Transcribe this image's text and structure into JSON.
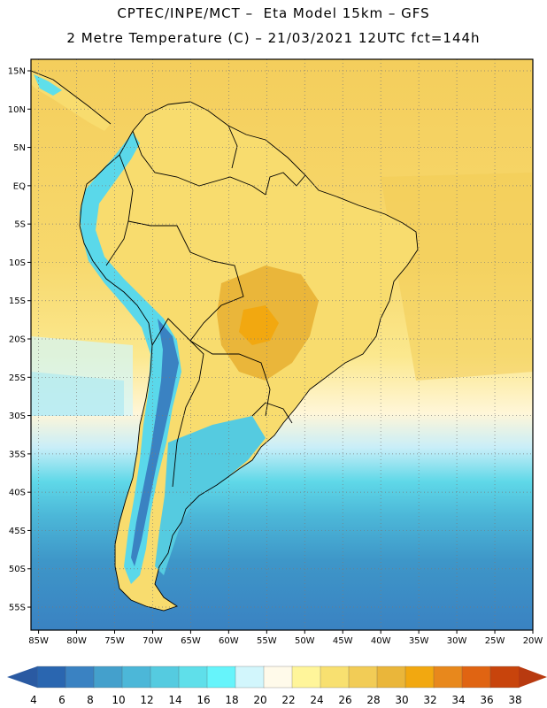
{
  "header": {
    "line1": "CPTEC/INPE/MCT –  Eta Model 15km – GFS",
    "line2": "2 Metre Temperature (C) – 21/03/2021 12UTC fct=144h"
  },
  "map": {
    "lon_range": [
      -86,
      -20
    ],
    "lat_range": [
      -58,
      16.5
    ],
    "lat_ticks": [
      {
        "value": 15,
        "label": "15N"
      },
      {
        "value": 10,
        "label": "10N"
      },
      {
        "value": 5,
        "label": "5N"
      },
      {
        "value": 0,
        "label": "EQ"
      },
      {
        "value": -5,
        "label": "5S"
      },
      {
        "value": -10,
        "label": "10S"
      },
      {
        "value": -15,
        "label": "15S"
      },
      {
        "value": -20,
        "label": "20S"
      },
      {
        "value": -25,
        "label": "25S"
      },
      {
        "value": -30,
        "label": "30S"
      },
      {
        "value": -35,
        "label": "35S"
      },
      {
        "value": -40,
        "label": "40S"
      },
      {
        "value": -45,
        "label": "45S"
      },
      {
        "value": -50,
        "label": "50S"
      },
      {
        "value": -55,
        "label": "55S"
      }
    ],
    "lon_ticks": [
      {
        "value": -85,
        "label": "85W"
      },
      {
        "value": -80,
        "label": "80W"
      },
      {
        "value": -75,
        "label": "75W"
      },
      {
        "value": -70,
        "label": "70W"
      },
      {
        "value": -65,
        "label": "65W"
      },
      {
        "value": -60,
        "label": "60W"
      },
      {
        "value": -55,
        "label": "55W"
      },
      {
        "value": -50,
        "label": "50W"
      },
      {
        "value": -45,
        "label": "45W"
      },
      {
        "value": -40,
        "label": "40W"
      },
      {
        "value": -35,
        "label": "35W"
      },
      {
        "value": -30,
        "label": "30W"
      },
      {
        "value": -25,
        "label": "25W"
      },
      {
        "value": -20,
        "label": "20W"
      }
    ]
  },
  "colorbar": {
    "labels": [
      "4",
      "6",
      "8",
      "10",
      "12",
      "14",
      "16",
      "18",
      "20",
      "22",
      "24",
      "26",
      "28",
      "30",
      "32",
      "34",
      "36",
      "38"
    ],
    "colors": [
      "#2a66b0",
      "#3a82c2",
      "#44a0cc",
      "#4cb7d8",
      "#55cbe0",
      "#5fdfea",
      "#66f4fb",
      "#d2f6fc",
      "#fffaea",
      "#fff59a",
      "#f8e070",
      "#f2cc56",
      "#eab63a",
      "#f2a810",
      "#e8881c",
      "#e06412",
      "#c8440c"
    ],
    "low_color": "#2a5aa2",
    "high_color": "#b83a10"
  }
}
